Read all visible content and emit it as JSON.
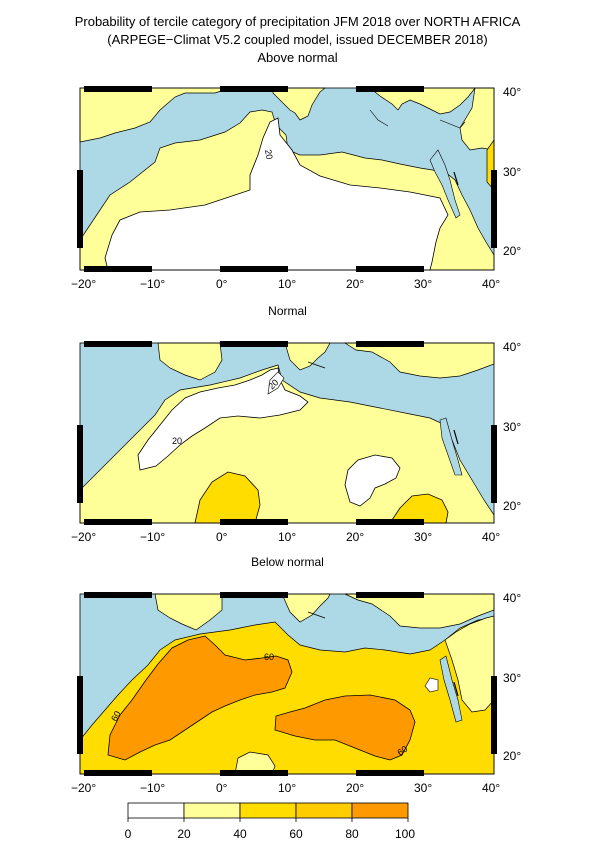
{
  "title": {
    "line1": "Probability of tercile category of precipitation JFM 2018 over NORTH AFRICA",
    "line2": "(ARPEGE−Climat V5.2 coupled model, issued DECEMBER 2018)"
  },
  "panels": [
    {
      "title": "Above normal",
      "contour_labels": [
        "20"
      ]
    },
    {
      "title": "Normal",
      "contour_labels": [
        "20",
        "20"
      ]
    },
    {
      "title": "Below normal",
      "contour_labels": [
        "60",
        "60",
        "60"
      ]
    }
  ],
  "axes": {
    "lon_ticks": [
      "−20°",
      "−10°",
      "0°",
      "10°",
      "20°",
      "30°",
      "40°"
    ],
    "lat_ticks": [
      "40°",
      "30°",
      "20°"
    ]
  },
  "colorbar": {
    "ticks": [
      "0",
      "20",
      "40",
      "60",
      "80",
      "100"
    ],
    "colors": [
      "#ffffff",
      "#ffff99",
      "#ffdd00",
      "#ffcc00",
      "#ff9900",
      "#ff6600"
    ]
  },
  "colors": {
    "sea": "#add8e6",
    "light_yellow": "#ffff99",
    "yellow": "#ffdd00",
    "orange": "#ff9900"
  }
}
